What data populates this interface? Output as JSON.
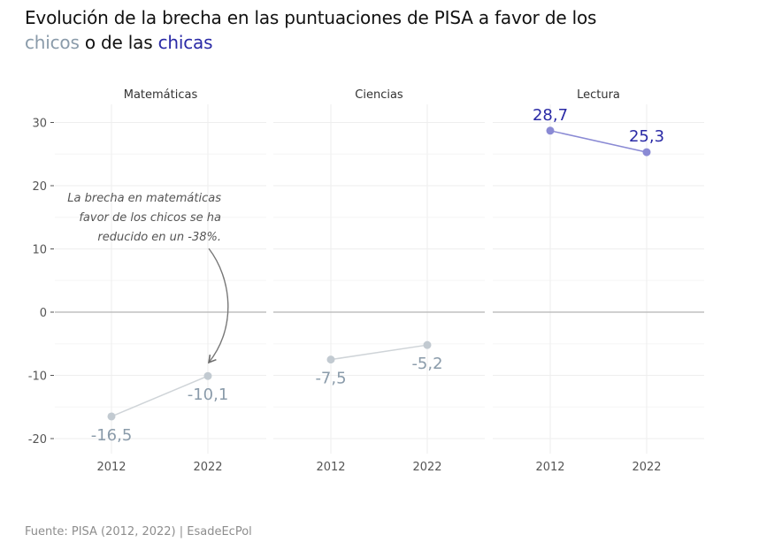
{
  "title": {
    "line1": "Evolución de la brecha en las puntuaciones de PISA a favor de los",
    "boys_word": "chicos",
    "middle": " o de las ",
    "girls_word": "chicas"
  },
  "source": "Fuente: PISA (2012, 2022) | EsadeEcPol",
  "colors": {
    "boys": "#a9b6c2",
    "boys_label": "#8a9baa",
    "girls": "#8a8ad4",
    "girls_label": "#2a2aa6",
    "zero_line": "#b5b5b5",
    "grid": "#eeeeee",
    "axis_text": "#555555"
  },
  "annotation": {
    "lines": [
      "La brecha en matemáticas",
      "favor de los chicos se ha",
      "reducido en un -38%."
    ]
  },
  "chart_data": {
    "type": "line",
    "facets": [
      "Matemáticas",
      "Ciencias",
      "Lectura"
    ],
    "x": [
      "2012",
      "2022"
    ],
    "yticks": [
      30,
      20,
      10,
      0,
      -10,
      -20
    ],
    "ylim": [
      -22,
      32
    ],
    "series": [
      {
        "facet": "Matemáticas",
        "values": [
          -16.5,
          -10.1
        ],
        "labels": [
          "-16,5",
          "-10,1"
        ],
        "group": "boys"
      },
      {
        "facet": "Ciencias",
        "values": [
          -7.5,
          -5.2
        ],
        "labels": [
          "-7,5",
          "-5,2"
        ],
        "group": "boys"
      },
      {
        "facet": "Lectura",
        "values": [
          28.7,
          25.3
        ],
        "labels": [
          "28,7",
          "25,3"
        ],
        "group": "girls"
      }
    ]
  }
}
